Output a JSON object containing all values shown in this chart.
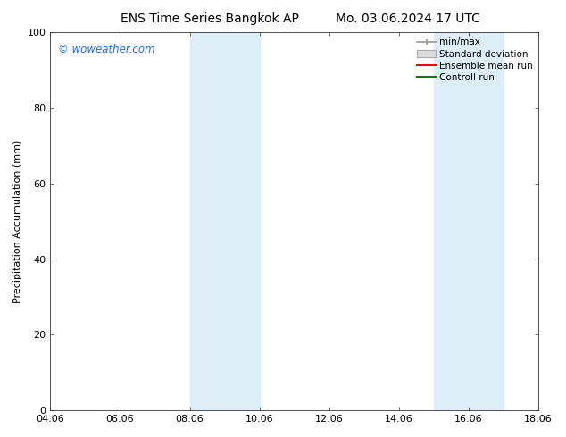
{
  "title_left": "ENS Time Series Bangkok AP",
  "title_right": "Mo. 03.06.2024 17 UTC",
  "ylabel": "Precipitation Accumulation (mm)",
  "watermark": "© woweather.com",
  "watermark_color": "#1a6aff",
  "ylim": [
    0,
    100
  ],
  "xlim_start": 4.06,
  "xlim_end": 18.06,
  "xticks": [
    4.06,
    6.06,
    8.06,
    10.06,
    12.06,
    14.06,
    16.06,
    18.06
  ],
  "xtick_labels": [
    "04.06",
    "06.06",
    "08.06",
    "10.06",
    "12.06",
    "14.06",
    "16.06",
    "18.06"
  ],
  "yticks": [
    0,
    20,
    40,
    60,
    80,
    100
  ],
  "shaded_bands": [
    {
      "x_start": 8.06,
      "x_end": 10.06,
      "color": "#ddeef8"
    },
    {
      "x_start": 15.06,
      "x_end": 17.06,
      "color": "#ddeef8"
    }
  ],
  "minmax_color": "#999999",
  "std_facecolor": "#dddddd",
  "std_edgecolor": "#aaaaaa",
  "ensemble_mean_color": "#ff0000",
  "control_run_color": "#008000",
  "legend_labels": [
    "min/max",
    "Standard deviation",
    "Ensemble mean run",
    "Controll run"
  ],
  "background_color": "#ffffff",
  "title_fontsize": 10,
  "label_fontsize": 8,
  "tick_fontsize": 8,
  "legend_fontsize": 7.5
}
